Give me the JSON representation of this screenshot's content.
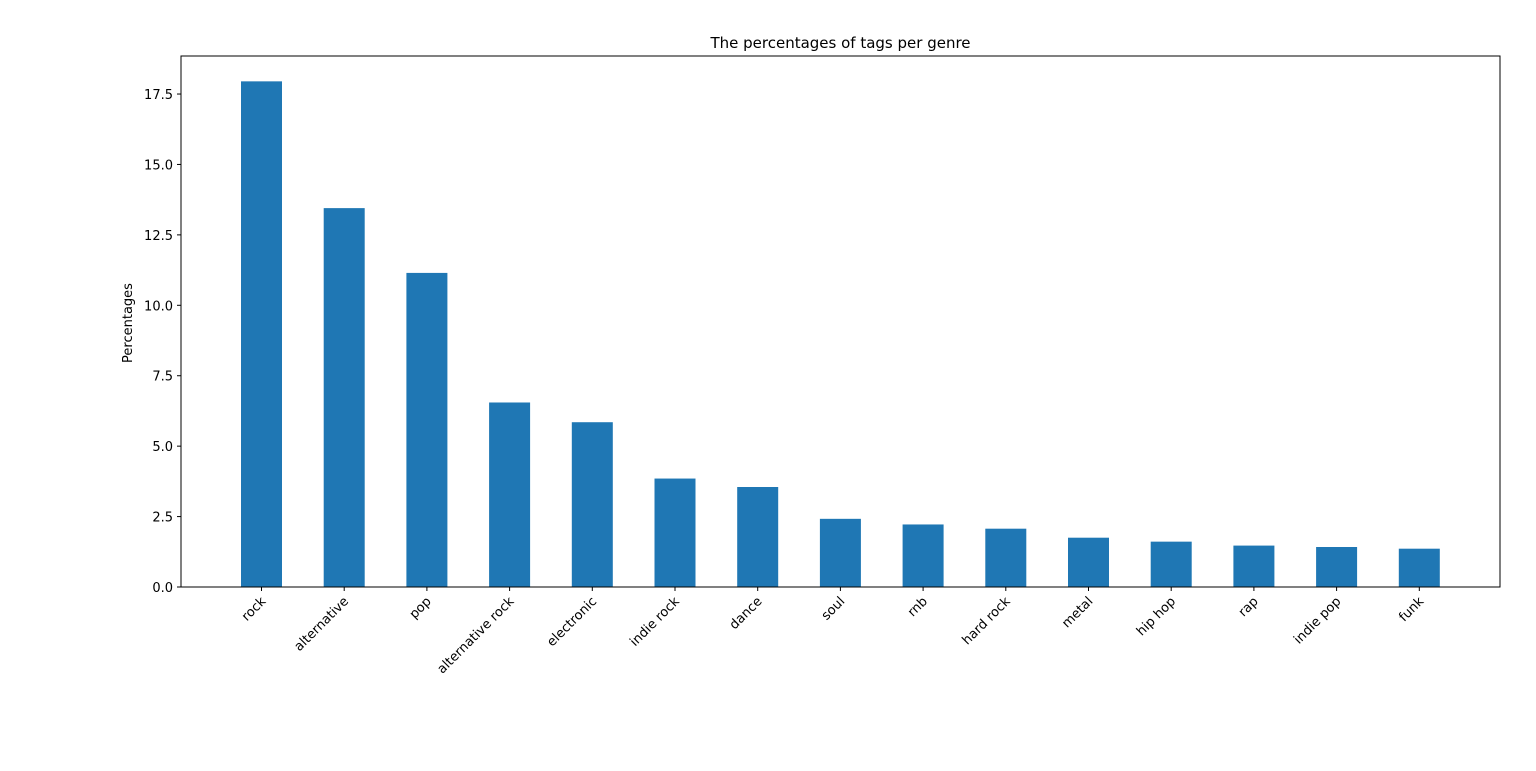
{
  "chart_data": {
    "type": "bar",
    "title": "The percentages of tags per genre",
    "xlabel": "",
    "ylabel": "Percentages",
    "categories": [
      "rock",
      "alternative",
      "pop",
      "alternative rock",
      "electronic",
      "indie rock",
      "dance",
      "soul",
      "rnb",
      "hard rock",
      "metal",
      "hip hop",
      "rap",
      "indie pop",
      "funk"
    ],
    "values": [
      17.95,
      13.45,
      11.15,
      6.55,
      5.85,
      3.85,
      3.55,
      2.42,
      2.22,
      2.07,
      1.75,
      1.61,
      1.47,
      1.42,
      1.36
    ],
    "ylim": [
      0,
      18.85
    ],
    "yticks": [
      0.0,
      2.5,
      5.0,
      7.5,
      10.0,
      12.5,
      15.0,
      17.5
    ],
    "ytick_labels": [
      "0.0",
      "2.5",
      "5.0",
      "7.5",
      "10.0",
      "12.5",
      "15.0",
      "17.5"
    ],
    "bar_color": "#1f77b4",
    "grid": false,
    "legend": "none"
  }
}
